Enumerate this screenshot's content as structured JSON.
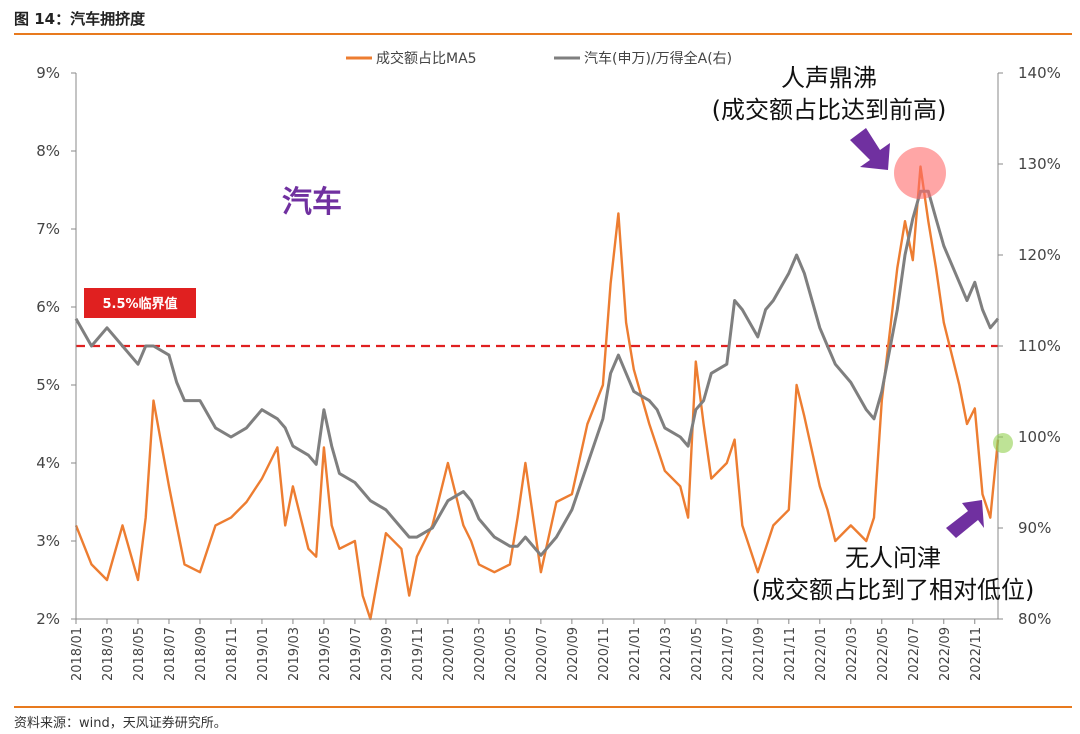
{
  "figure": {
    "title": "图 14：汽车拥挤度",
    "source": "资料来源：wind，天风证券研究所。"
  },
  "chart_data": {
    "type": "line",
    "title": "",
    "sector_label": "汽车",
    "x_ticks": [
      "2018/01",
      "2018/03",
      "2018/05",
      "2018/07",
      "2018/09",
      "2018/11",
      "2019/01",
      "2019/03",
      "2019/05",
      "2019/07",
      "2019/09",
      "2019/11",
      "2020/01",
      "2020/03",
      "2020/05",
      "2020/07",
      "2020/09",
      "2020/11",
      "2021/01",
      "2021/03",
      "2021/05",
      "2021/07",
      "2021/09",
      "2021/11",
      "2022/01",
      "2022/03",
      "2022/05",
      "2022/07",
      "2022/09",
      "2022/11"
    ],
    "y_left": {
      "ticks": [
        "9%",
        "8%",
        "7%",
        "6%",
        "5%",
        "4%",
        "3%",
        "2%"
      ],
      "range": [
        2,
        9
      ]
    },
    "y_right": {
      "ticks": [
        "140%",
        "130%",
        "120%",
        "110%",
        "100%",
        "90%",
        "80%"
      ],
      "range": [
        80,
        140
      ]
    },
    "threshold": {
      "value": 5.5,
      "axis": "left",
      "label": "5.5%临界值",
      "color": "#e02020"
    },
    "series": [
      {
        "name": "成交额占比MA5",
        "axis": "left",
        "color": "#ed7d31",
        "points": [
          [
            "2018/01",
            3.2
          ],
          [
            "2018/02",
            2.7
          ],
          [
            "2018/03",
            2.5
          ],
          [
            "2018/04",
            3.2
          ],
          [
            "2018/05",
            2.5
          ],
          [
            "2018/05",
            3.3
          ],
          [
            "2018/06",
            4.8
          ],
          [
            "2018/07",
            3.7
          ],
          [
            "2018/07",
            3.2
          ],
          [
            "2018/08",
            2.7
          ],
          [
            "2018/09",
            2.6
          ],
          [
            "2018/10",
            3.2
          ],
          [
            "2018/11",
            3.3
          ],
          [
            "2018/12",
            3.5
          ],
          [
            "2019/01",
            3.8
          ],
          [
            "2019/02",
            4.2
          ],
          [
            "2019/02",
            3.2
          ],
          [
            "2019/03",
            3.7
          ],
          [
            "2019/04",
            2.9
          ],
          [
            "2019/04",
            2.8
          ],
          [
            "2019/05",
            4.2
          ],
          [
            "2019/05",
            3.2
          ],
          [
            "2019/06",
            2.9
          ],
          [
            "2019/07",
            3.0
          ],
          [
            "2019/07",
            2.3
          ],
          [
            "2019/08",
            2.0
          ],
          [
            "2019/09",
            3.1
          ],
          [
            "2019/10",
            2.9
          ],
          [
            "2019/10",
            2.3
          ],
          [
            "2019/11",
            2.8
          ],
          [
            "2019/12",
            3.2
          ],
          [
            "2020/01",
            4.0
          ],
          [
            "2020/02",
            3.2
          ],
          [
            "2020/02",
            3.0
          ],
          [
            "2020/03",
            2.7
          ],
          [
            "2020/04",
            2.6
          ],
          [
            "2020/05",
            2.7
          ],
          [
            "2020/05",
            3.3
          ],
          [
            "2020/06",
            4.0
          ],
          [
            "2020/07",
            2.6
          ],
          [
            "2020/08",
            3.5
          ],
          [
            "2020/09",
            3.6
          ],
          [
            "2020/10",
            4.5
          ],
          [
            "2020/11",
            5.0
          ],
          [
            "2020/11",
            6.3
          ],
          [
            "2020/12",
            7.2
          ],
          [
            "2020/12",
            5.8
          ],
          [
            "2021/01",
            5.2
          ],
          [
            "2021/02",
            4.5
          ],
          [
            "2021/02",
            4.2
          ],
          [
            "2021/03",
            3.9
          ],
          [
            "2021/04",
            3.7
          ],
          [
            "2021/04",
            3.3
          ],
          [
            "2021/05",
            5.3
          ],
          [
            "2021/05",
            4.5
          ],
          [
            "2021/06",
            3.8
          ],
          [
            "2021/07",
            4.0
          ],
          [
            "2021/07",
            4.3
          ],
          [
            "2021/08",
            3.2
          ],
          [
            "2021/09",
            2.6
          ],
          [
            "2021/09",
            2.9
          ],
          [
            "2021/10",
            3.2
          ],
          [
            "2021/11",
            3.4
          ],
          [
            "2021/11",
            5.0
          ],
          [
            "2021/12",
            4.6
          ],
          [
            "2022/01",
            3.7
          ],
          [
            "2022/01",
            3.4
          ],
          [
            "2022/02",
            3.0
          ],
          [
            "2022/03",
            3.2
          ],
          [
            "2022/04",
            3.0
          ],
          [
            "2022/04",
            3.3
          ],
          [
            "2022/05",
            4.8
          ],
          [
            "2022/06",
            6.5
          ],
          [
            "2022/06",
            7.1
          ],
          [
            "2022/07",
            6.6
          ],
          [
            "2022/07",
            7.8
          ],
          [
            "2022/08",
            7.1
          ],
          [
            "2022/08",
            6.5
          ],
          [
            "2022/09",
            5.8
          ],
          [
            "2022/10",
            5.0
          ],
          [
            "2022/10",
            4.5
          ],
          [
            "2022/11",
            4.7
          ],
          [
            "2022/11",
            3.6
          ],
          [
            "2022/12",
            3.3
          ],
          [
            "2022/12",
            4.3
          ]
        ]
      },
      {
        "name": "汽车(申万)/万得全A(右)",
        "axis": "right",
        "color": "#7f7f7f",
        "points": [
          [
            "2018/01",
            113
          ],
          [
            "2018/02",
            110
          ],
          [
            "2018/03",
            112
          ],
          [
            "2018/04",
            110
          ],
          [
            "2018/05",
            108
          ],
          [
            "2018/05",
            110
          ],
          [
            "2018/06",
            110
          ],
          [
            "2018/07",
            109
          ],
          [
            "2018/07",
            106
          ],
          [
            "2018/08",
            104
          ],
          [
            "2018/09",
            104
          ],
          [
            "2018/10",
            101
          ],
          [
            "2018/11",
            100
          ],
          [
            "2018/12",
            101
          ],
          [
            "2019/01",
            103
          ],
          [
            "2019/02",
            102
          ],
          [
            "2019/02",
            101
          ],
          [
            "2019/03",
            99
          ],
          [
            "2019/04",
            98
          ],
          [
            "2019/04",
            97
          ],
          [
            "2019/05",
            103
          ],
          [
            "2019/05",
            99
          ],
          [
            "2019/06",
            96
          ],
          [
            "2019/07",
            95
          ],
          [
            "2019/07",
            94
          ],
          [
            "2019/08",
            93
          ],
          [
            "2019/09",
            92
          ],
          [
            "2019/10",
            90
          ],
          [
            "2019/10",
            89
          ],
          [
            "2019/11",
            89
          ],
          [
            "2019/12",
            90
          ],
          [
            "2020/01",
            93
          ],
          [
            "2020/02",
            94
          ],
          [
            "2020/02",
            93
          ],
          [
            "2020/03",
            91
          ],
          [
            "2020/04",
            89
          ],
          [
            "2020/05",
            88
          ],
          [
            "2020/05",
            88
          ],
          [
            "2020/06",
            89
          ],
          [
            "2020/07",
            87
          ],
          [
            "2020/08",
            89
          ],
          [
            "2020/09",
            92
          ],
          [
            "2020/10",
            97
          ],
          [
            "2020/11",
            102
          ],
          [
            "2020/11",
            107
          ],
          [
            "2020/12",
            109
          ],
          [
            "2020/12",
            107
          ],
          [
            "2021/01",
            105
          ],
          [
            "2021/02",
            104
          ],
          [
            "2021/02",
            103
          ],
          [
            "2021/03",
            101
          ],
          [
            "2021/04",
            100
          ],
          [
            "2021/04",
            99
          ],
          [
            "2021/05",
            103
          ],
          [
            "2021/05",
            104
          ],
          [
            "2021/06",
            107
          ],
          [
            "2021/07",
            108
          ],
          [
            "2021/07",
            115
          ],
          [
            "2021/08",
            114
          ],
          [
            "2021/09",
            111
          ],
          [
            "2021/09",
            114
          ],
          [
            "2021/10",
            115
          ],
          [
            "2021/11",
            118
          ],
          [
            "2021/11",
            120
          ],
          [
            "2021/12",
            118
          ],
          [
            "2022/01",
            112
          ],
          [
            "2022/01",
            110
          ],
          [
            "2022/02",
            108
          ],
          [
            "2022/03",
            106
          ],
          [
            "2022/04",
            103
          ],
          [
            "2022/04",
            102
          ],
          [
            "2022/05",
            105
          ],
          [
            "2022/06",
            114
          ],
          [
            "2022/06",
            120
          ],
          [
            "2022/07",
            124
          ],
          [
            "2022/07",
            127
          ],
          [
            "2022/08",
            127
          ],
          [
            "2022/08",
            124
          ],
          [
            "2022/09",
            121
          ],
          [
            "2022/10",
            117
          ],
          [
            "2022/10",
            115
          ],
          [
            "2022/11",
            117
          ],
          [
            "2022/11",
            114
          ],
          [
            "2022/12",
            112
          ],
          [
            "2022/12",
            113
          ]
        ]
      }
    ],
    "annotations": [
      {
        "text": "人声鼎沸",
        "subtext": "(成交额占比达到前高)",
        "marker": "highlight-circle",
        "marker_color": "#ff6b6b"
      },
      {
        "text": "无人问津",
        "subtext": "(成交额占比到了相对低位)",
        "marker": "highlight-circle",
        "marker_color": "#92d050"
      }
    ],
    "arrow_color": "#7030a0"
  }
}
